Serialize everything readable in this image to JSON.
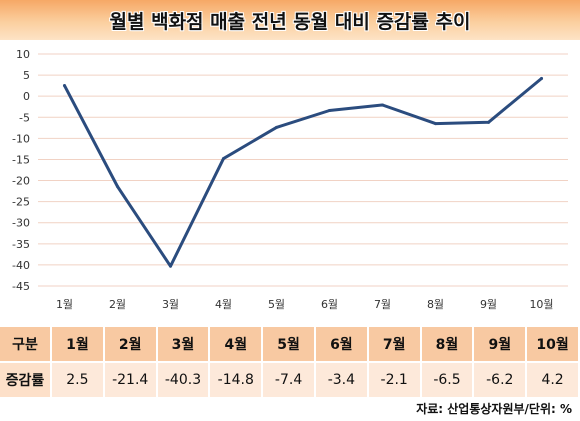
{
  "title": "월별 백화점 매출 전년 동월 대비 증감률 추이",
  "chart_data": {
    "type": "line",
    "categories": [
      "1월",
      "2월",
      "3월",
      "4월",
      "5월",
      "6월",
      "7월",
      "8월",
      "9월",
      "10월"
    ],
    "series": [
      {
        "values": [
          2.5,
          -21.4,
          -40.3,
          -14.8,
          -7.4,
          -3.4,
          -2.1,
          -6.5,
          -6.2,
          4.2
        ]
      }
    ],
    "ylim": [
      -45,
      10
    ],
    "yticks": [
      10,
      5,
      0,
      -5,
      -10,
      -15,
      -20,
      -25,
      -30,
      -35,
      -40,
      -45
    ],
    "grid": true,
    "line_color": "#2b4c7e"
  },
  "table": {
    "header_label": "구분",
    "row_label": "증감률",
    "columns": [
      "1월",
      "2월",
      "3월",
      "4월",
      "5월",
      "6월",
      "7월",
      "8월",
      "9월",
      "10월"
    ],
    "values": [
      "2.5",
      "-21.4",
      "-40.3",
      "-14.8",
      "-7.4",
      "-3.4",
      "-2.1",
      "-6.5",
      "-6.2",
      "4.2"
    ]
  },
  "source": "자료: 산업통상자원부/단위: %"
}
